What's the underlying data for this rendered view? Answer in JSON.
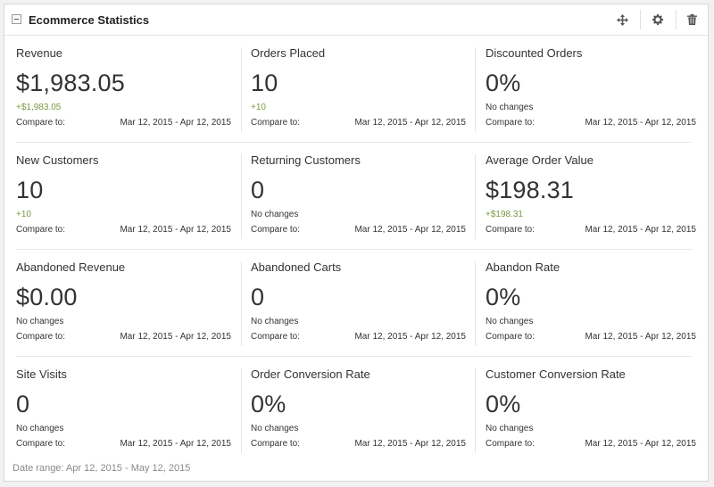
{
  "widget": {
    "title": "Ecommerce Statistics",
    "icons": [
      "move-icon",
      "gear-icon",
      "trash-icon"
    ]
  },
  "compare_label": "Compare to:",
  "compare_range": "Mar 12, 2015 - Apr 12, 2015",
  "stats": [
    {
      "label": "Revenue",
      "value": "$1,983.05",
      "change": "+$1,983.05",
      "positive": true
    },
    {
      "label": "Orders Placed",
      "value": "10",
      "change": "+10",
      "positive": true
    },
    {
      "label": "Discounted Orders",
      "value": "0%",
      "change": "No changes",
      "positive": false
    },
    {
      "label": "New Customers",
      "value": "10",
      "change": "+10",
      "positive": true
    },
    {
      "label": "Returning Customers",
      "value": "0",
      "change": "No changes",
      "positive": false
    },
    {
      "label": "Average Order Value",
      "value": "$198.31",
      "change": "+$198.31",
      "positive": true
    },
    {
      "label": "Abandoned Revenue",
      "value": "$0.00",
      "change": "No changes",
      "positive": false
    },
    {
      "label": "Abandoned Carts",
      "value": "0",
      "change": "No changes",
      "positive": false
    },
    {
      "label": "Abandon Rate",
      "value": "0%",
      "change": "No changes",
      "positive": false
    },
    {
      "label": "Site Visits",
      "value": "0",
      "change": "No changes",
      "positive": false
    },
    {
      "label": "Order Conversion Rate",
      "value": "0%",
      "change": "No changes",
      "positive": false
    },
    {
      "label": "Customer Conversion Rate",
      "value": "0%",
      "change": "No changes",
      "positive": false
    }
  ],
  "footer": "Date range: Apr 12, 2015 - May 12, 2015",
  "colors": {
    "positive": "#7a9a3f",
    "text": "#333333"
  }
}
